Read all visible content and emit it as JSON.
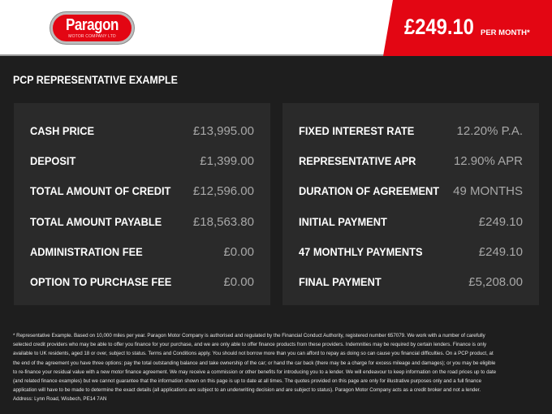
{
  "header": {
    "logo_text": "Paragon",
    "logo_subtext": "MOTOR COMPANY LTD",
    "price": "£249.10",
    "per_month": "PER MONTH*",
    "accent": "#e30613"
  },
  "section_title": "PCP REPRESENTATIVE EXAMPLE",
  "left_rows": [
    {
      "label": "CASH PRICE",
      "value": "£13,995.00"
    },
    {
      "label": "DEPOSIT",
      "value": "£1,399.00"
    },
    {
      "label": "TOTAL AMOUNT OF CREDIT",
      "value": "£12,596.00"
    },
    {
      "label": "TOTAL AMOUNT PAYABLE",
      "value": "£18,563.80"
    },
    {
      "label": "ADMINISTRATION FEE",
      "value": "£0.00"
    },
    {
      "label": "OPTION TO PURCHASE FEE",
      "value": "£0.00"
    }
  ],
  "right_rows": [
    {
      "label": "FIXED INTEREST RATE",
      "value": "12.20% P.A."
    },
    {
      "label": "REPRESENTATIVE APR",
      "value": "12.90% APR"
    },
    {
      "label": "DURATION OF AGREEMENT",
      "value": "49 MONTHS"
    },
    {
      "label": "INITIAL PAYMENT",
      "value": "£249.10"
    },
    {
      "label": "47 MONTHLY PAYMENTS",
      "value": "£249.10"
    },
    {
      "label": "FINAL PAYMENT",
      "value": "£5,208.00"
    }
  ],
  "disclaimer": "* Representative Example. Based on 10,000 miles per year. Paragon Motor Company is authorised and regulated by the Financial Conduct Authority, registered number 657079. We work with a number of carefully selected credit providers who may be able to offer you finance for your purchase, and we are only able to offer finance products from these providers. Indemnities may be required by certain lenders. Finance is only available to UK residents, aged 18 or over, subject to status. Terms and Conditions apply. You should not borrow more than you can afford to repay as doing so can cause you financial difficulties. On a PCP product, at the end of the agreement you have three options: pay the total outstanding balance and take ownership of the car; or hand the car back (there may be a charge for excess mileage and damages); or you may be eligible to re-finance your residual value with a new motor finance agreement. We may receive a commission or other benefits for introducing you to a lender. We will endeavour to keep information on the road prices up to date (and related finance examples) but we cannot guarantee that the information shown on this page is up to date at all times. The quotes provided on this page are only for illustrative purposes only and a full finance application will have to be made to determine the exact details (all applications are subject to an underwriting decision and are subject to status). Paragon Motor Company acts as a credit broker and not a lender. Address: Lynn Road, Wisbech, PE14 7AN"
}
